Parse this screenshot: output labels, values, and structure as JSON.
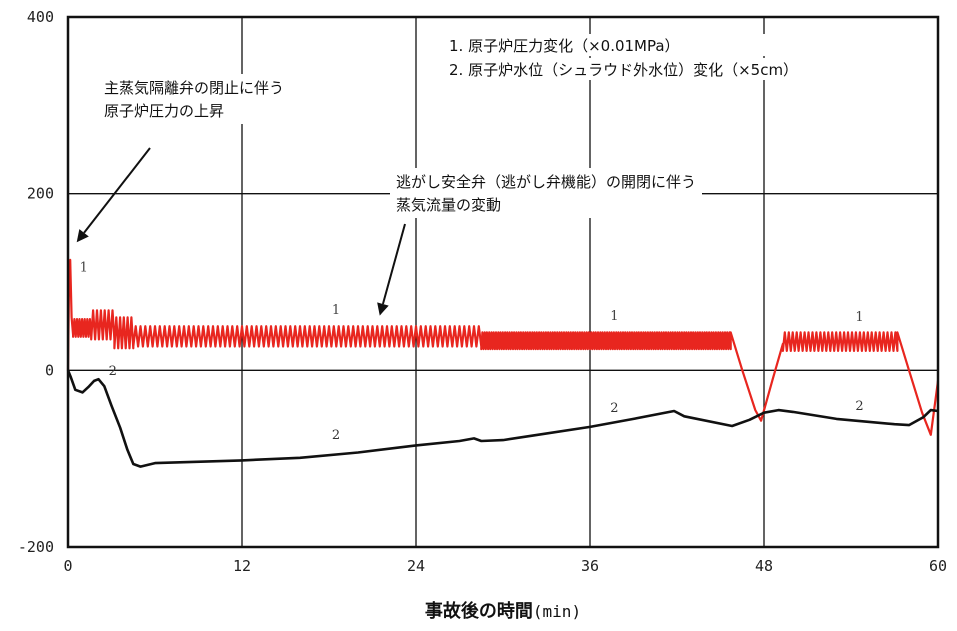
{
  "chart_data": {
    "type": "line",
    "title": "",
    "xlabel": "事故後の時間",
    "xunit": "(min)",
    "ylabel": "",
    "xlim": [
      0,
      60
    ],
    "ylim": [
      -200,
      400
    ],
    "xticks": [
      0,
      12,
      24,
      36,
      48,
      60
    ],
    "yticks": [
      -200,
      0,
      200,
      400
    ],
    "grid": true,
    "legend_position": "top-right",
    "legend": [
      "1. 原子炉圧力変化（×0.01MPa）",
      "2. 原子炉水位（シュラウド外水位）変化（×5cm）"
    ],
    "annotations": [
      {
        "lines": [
          "主蒸気隔離弁の閉止に伴う",
          "原子炉圧力の上昇"
        ],
        "target": [
          0.6,
          145
        ]
      },
      {
        "lines": [
          "逃がし安全弁（逃がし弁機能）の開閉に伴う",
          "蒸気流量の変動"
        ],
        "target": [
          21.5,
          62
        ]
      }
    ],
    "series": [
      {
        "label": "1",
        "color": "#e8261f",
        "segments": [
          {
            "type": "points",
            "points": [
              [
                0.0,
                0
              ],
              [
                0.08,
                115
              ],
              [
                0.15,
                125
              ],
              [
                0.25,
                60
              ],
              [
                0.35,
                40
              ]
            ]
          },
          {
            "type": "oscillation",
            "x0": 0.35,
            "x1": 1.6,
            "count": 7,
            "low": 38,
            "high": 58
          },
          {
            "type": "oscillation",
            "x0": 1.6,
            "x1": 3.2,
            "count": 6,
            "low": 35,
            "high": 68
          },
          {
            "type": "oscillation",
            "x0": 3.2,
            "x1": 4.5,
            "count": 5,
            "low": 25,
            "high": 60
          },
          {
            "type": "oscillation",
            "x0": 4.5,
            "x1": 28.5,
            "count": 72,
            "low": 27,
            "high": 50
          },
          {
            "type": "oscillation",
            "x0": 28.5,
            "x1": 45.7,
            "count": 110,
            "low": 24,
            "high": 43
          },
          {
            "type": "points",
            "points": [
              [
                45.7,
                43
              ],
              [
                46.5,
                0
              ],
              [
                47.4,
                -45
              ],
              [
                47.8,
                -57
              ],
              [
                48.6,
                -10
              ],
              [
                49.3,
                30
              ]
            ]
          },
          {
            "type": "oscillation",
            "x0": 49.3,
            "x1": 57.2,
            "count": 29,
            "low": 22,
            "high": 43
          },
          {
            "type": "points",
            "points": [
              [
                57.2,
                43
              ],
              [
                58.0,
                0
              ],
              [
                58.9,
                -48
              ],
              [
                59.5,
                -73
              ],
              [
                60.0,
                -12
              ]
            ]
          }
        ],
        "labels": [
          {
            "x": 0.8,
            "y": 112
          },
          {
            "x": 18.2,
            "y": 64
          },
          {
            "x": 37.4,
            "y": 57
          },
          {
            "x": 54.3,
            "y": 56
          }
        ]
      },
      {
        "label": "2",
        "color": "#111111",
        "segments": [
          {
            "type": "points",
            "points": [
              [
                0,
                0
              ],
              [
                0.2,
                -8
              ],
              [
                0.5,
                -22
              ],
              [
                1.0,
                -25
              ],
              [
                1.4,
                -19
              ],
              [
                1.8,
                -12
              ],
              [
                2.1,
                -10
              ],
              [
                2.5,
                -18
              ],
              [
                3.0,
                -40
              ],
              [
                3.6,
                -65
              ],
              [
                4.1,
                -90
              ],
              [
                4.5,
                -106
              ],
              [
                5.0,
                -109
              ],
              [
                6.0,
                -105
              ],
              [
                8.0,
                -104
              ],
              [
                12.0,
                -102
              ],
              [
                16.0,
                -99
              ],
              [
                20.0,
                -93
              ],
              [
                24.0,
                -85
              ],
              [
                27.0,
                -80
              ],
              [
                28.0,
                -77
              ],
              [
                28.5,
                -80
              ],
              [
                30.0,
                -79
              ],
              [
                32.0,
                -74
              ],
              [
                36.0,
                -64
              ],
              [
                39.0,
                -55
              ],
              [
                41.8,
                -46
              ],
              [
                42.5,
                -52
              ],
              [
                45.8,
                -63
              ],
              [
                47.0,
                -56
              ],
              [
                48.0,
                -48
              ],
              [
                49.0,
                -45
              ],
              [
                50.0,
                -47
              ],
              [
                53.0,
                -55
              ],
              [
                57.0,
                -61
              ],
              [
                58.0,
                -62
              ],
              [
                59.0,
                -53
              ],
              [
                59.5,
                -45
              ],
              [
                60.0,
                -46
              ]
            ]
          }
        ],
        "labels": [
          {
            "x": 2.8,
            "y": -5
          },
          {
            "x": 18.2,
            "y": -78
          },
          {
            "x": 37.4,
            "y": -47
          },
          {
            "x": 54.3,
            "y": -45
          }
        ]
      }
    ]
  }
}
